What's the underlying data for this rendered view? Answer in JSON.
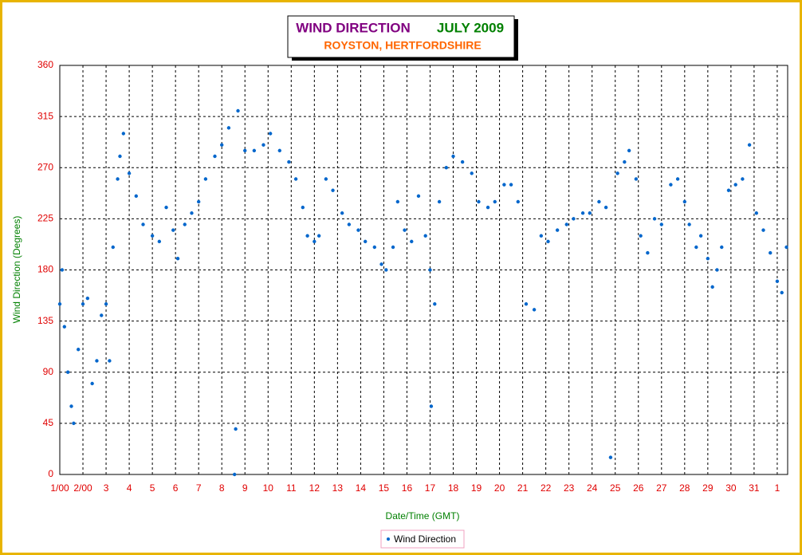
{
  "chart_data": {
    "type": "scatter",
    "title": "WIND DIRECTION",
    "title_period": "JULY 2009",
    "subtitle": "ROYSTON, HERTFORDSHIRE",
    "x_label": "Date/Time (GMT)",
    "y_label": "Wind Direction (Degrees)",
    "xlim": [
      1,
      32.45
    ],
    "ylim": [
      0,
      360
    ],
    "xticks": [
      {
        "value": 1,
        "label": "1/00"
      },
      {
        "value": 2,
        "label": "2/00"
      },
      3,
      4,
      5,
      6,
      7,
      8,
      9,
      10,
      11,
      12,
      13,
      14,
      15,
      16,
      17,
      18,
      19,
      20,
      21,
      22,
      23,
      24,
      25,
      26,
      27,
      28,
      29,
      30,
      31,
      {
        "value": 32,
        "label": "1"
      }
    ],
    "yticks": [
      0,
      45,
      90,
      135,
      180,
      225,
      270,
      315,
      360
    ],
    "grid": true,
    "x": [
      1.0,
      1.1,
      1.2,
      1.35,
      1.5,
      1.6,
      1.8,
      2.0,
      2.2,
      2.4,
      2.6,
      2.8,
      3.0,
      3.15,
      3.3,
      3.5,
      3.6,
      3.75,
      4.0,
      4.3,
      4.6,
      5.0,
      5.3,
      5.6,
      5.9,
      6.1,
      6.4,
      6.7,
      7.0,
      7.3,
      7.7,
      8.0,
      8.3,
      8.55,
      8.6,
      8.7,
      9.0,
      9.4,
      9.8,
      10.1,
      10.5,
      10.9,
      11.2,
      11.5,
      11.7,
      12.0,
      12.2,
      12.5,
      12.8,
      13.2,
      13.5,
      13.9,
      14.2,
      14.6,
      14.9,
      15.1,
      15.4,
      15.6,
      15.9,
      16.2,
      16.5,
      16.8,
      17.0,
      17.05,
      17.2,
      17.4,
      17.7,
      18.0,
      18.4,
      18.8,
      19.1,
      19.5,
      19.8,
      20.2,
      20.5,
      20.8,
      21.15,
      21.5,
      21.8,
      22.1,
      22.5,
      22.9,
      23.2,
      23.6,
      23.9,
      24.3,
      24.6,
      24.8,
      25.1,
      25.4,
      25.6,
      25.9,
      26.1,
      26.4,
      26.7,
      27.0,
      27.4,
      27.7,
      28.0,
      28.2,
      28.5,
      28.7,
      29.0,
      29.2,
      29.4,
      29.6,
      29.9,
      30.2,
      30.5,
      30.8,
      31.1,
      31.4,
      31.7,
      32.0,
      32.2,
      32.4
    ],
    "series": [
      {
        "name": "Wind Direction",
        "color": "#0066cc",
        "values": [
          150,
          180,
          130,
          90,
          60,
          45,
          110,
          150,
          155,
          80,
          100,
          140,
          150,
          100,
          200,
          260,
          280,
          300,
          265,
          245,
          220,
          210,
          205,
          235,
          215,
          190,
          220,
          230,
          240,
          260,
          280,
          290,
          305,
          0,
          40,
          320,
          285,
          285,
          290,
          300,
          285,
          275,
          260,
          235,
          210,
          205,
          210,
          260,
          250,
          230,
          220,
          215,
          205,
          200,
          185,
          180,
          200,
          240,
          215,
          205,
          245,
          210,
          180,
          60,
          150,
          240,
          270,
          280,
          275,
          265,
          240,
          235,
          240,
          255,
          255,
          240,
          150,
          145,
          210,
          205,
          215,
          220,
          225,
          230,
          230,
          240,
          235,
          15,
          265,
          275,
          285,
          260,
          210,
          195,
          225,
          220,
          255,
          260,
          240,
          220,
          200,
          210,
          190,
          165,
          180,
          200,
          250,
          255,
          260,
          290,
          230,
          215,
          195,
          170,
          160,
          200
        ]
      }
    ]
  }
}
